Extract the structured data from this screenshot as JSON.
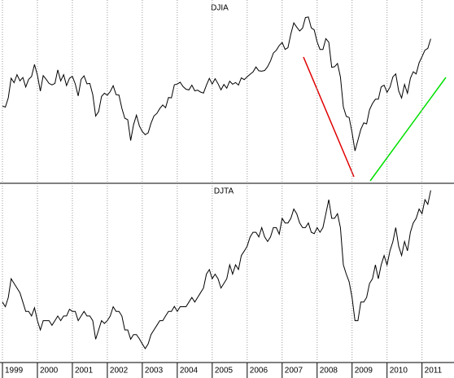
{
  "chart_data": [
    {
      "type": "line",
      "title": "DJIA",
      "color": "#000000",
      "ylim": [
        5400,
        14800
      ],
      "categories": [
        "1999",
        null,
        null,
        null,
        null,
        null,
        null,
        null,
        null,
        null,
        null,
        null,
        "2000",
        null,
        null,
        null,
        null,
        null,
        null,
        null,
        null,
        null,
        null,
        null,
        "2001",
        null,
        null,
        null,
        null,
        null,
        null,
        null,
        null,
        null,
        null,
        null,
        "2002",
        null,
        null,
        null,
        null,
        null,
        null,
        null,
        null,
        null,
        null,
        null,
        "2003",
        null,
        null,
        null,
        null,
        null,
        null,
        null,
        null,
        null,
        null,
        null,
        "2004",
        null,
        null,
        null,
        null,
        null,
        null,
        null,
        null,
        null,
        null,
        null,
        "2005",
        null,
        null,
        null,
        null,
        null,
        null,
        null,
        null,
        null,
        null,
        null,
        "2006",
        null,
        null,
        null,
        null,
        null,
        null,
        null,
        null,
        null,
        null,
        null,
        "2007",
        null,
        null,
        null,
        null,
        null,
        null,
        null,
        null,
        null,
        null,
        null,
        "2008",
        null,
        null,
        null,
        null,
        null,
        null,
        null,
        null,
        null,
        null,
        null,
        "2009",
        null,
        null,
        null,
        null,
        null,
        null,
        null,
        null,
        null,
        null,
        null,
        "2010",
        null,
        null,
        null,
        null,
        null,
        null,
        null,
        null,
        null,
        null,
        null,
        "2011",
        null,
        null,
        null
      ],
      "values": [
        9359,
        9307,
        9786,
        10789,
        10559,
        10971,
        10655,
        10829,
        10337,
        10730,
        10878,
        11497,
        10941,
        10128,
        10922,
        10734,
        10522,
        10448,
        10522,
        11215,
        10651,
        10971,
        10415,
        10787,
        10887,
        10495,
        9879,
        10735,
        10912,
        10502,
        10523,
        9950,
        8848,
        9075,
        9852,
        10021,
        9920,
        10106,
        10404,
        9946,
        9925,
        9243,
        8737,
        8664,
        7592,
        8397,
        8896,
        8342,
        8054,
        7891,
        7992,
        8480,
        8850,
        8985,
        9234,
        9416,
        9275,
        9801,
        9782,
        10454,
        10488,
        10583,
        10358,
        10226,
        10188,
        10435,
        10140,
        10174,
        10080,
        10027,
        10428,
        10783,
        10490,
        10766,
        10504,
        10193,
        10467,
        10275,
        10641,
        10482,
        10569,
        10440,
        10806,
        10718,
        10865,
        10993,
        11109,
        11367,
        11168,
        11150,
        11186,
        11381,
        11679,
        12081,
        12221,
        12463,
        12622,
        12269,
        12354,
        13063,
        13628,
        13409,
        13212,
        13358,
        13896,
        13930,
        13372,
        13265,
        12650,
        12266,
        12263,
        12820,
        12638,
        11350,
        11378,
        11544,
        10851,
        9325,
        8829,
        8776,
        8001,
        7063,
        7609,
        8168,
        8500,
        8447,
        9172,
        9496,
        9712,
        9713,
        10345,
        10428,
        10067,
        10325,
        10857,
        11009,
        10137,
        9774,
        10466,
        10015,
        10788,
        11118,
        11006,
        11578,
        11892,
        12226,
        12320,
        12811
      ]
    },
    {
      "type": "line",
      "title": "DJTA",
      "color": "#000000",
      "ylim": [
        1800,
        5600
      ],
      "categories": [
        "1999",
        null,
        null,
        null,
        null,
        null,
        null,
        null,
        null,
        null,
        null,
        null,
        "2000",
        null,
        null,
        null,
        null,
        null,
        null,
        null,
        null,
        null,
        null,
        null,
        "2001",
        null,
        null,
        null,
        null,
        null,
        null,
        null,
        null,
        null,
        null,
        null,
        "2002",
        null,
        null,
        null,
        null,
        null,
        null,
        null,
        null,
        null,
        null,
        null,
        "2003",
        null,
        null,
        null,
        null,
        null,
        null,
        null,
        null,
        null,
        null,
        null,
        "2004",
        null,
        null,
        null,
        null,
        null,
        null,
        null,
        null,
        null,
        null,
        null,
        "2005",
        null,
        null,
        null,
        null,
        null,
        null,
        null,
        null,
        null,
        null,
        null,
        "2006",
        null,
        null,
        null,
        null,
        null,
        null,
        null,
        null,
        null,
        null,
        null,
        "2007",
        null,
        null,
        null,
        null,
        null,
        null,
        null,
        null,
        null,
        null,
        null,
        "2008",
        null,
        null,
        null,
        null,
        null,
        null,
        null,
        null,
        null,
        null,
        null,
        "2009",
        null,
        null,
        null,
        null,
        null,
        null,
        null,
        null,
        null,
        null,
        null,
        "2010",
        null,
        null,
        null,
        null,
        null,
        null,
        null,
        null,
        null,
        null,
        null,
        "2011",
        null,
        null,
        null
      ],
      "values": [
        3100,
        3000,
        3200,
        3600,
        3500,
        3400,
        3300,
        3100,
        2900,
        2900,
        2800,
        2977,
        2700,
        2500,
        2700,
        2700,
        2700,
        2600,
        2700,
        2800,
        2700,
        2800,
        2800,
        2946,
        2900,
        2900,
        2700,
        2800,
        2900,
        2800,
        2800,
        2700,
        2300,
        2500,
        2700,
        2640,
        2700,
        2800,
        3000,
        2900,
        2900,
        2800,
        2500,
        2500,
        2300,
        2400,
        2400,
        2310,
        2200,
        2100,
        2200,
        2400,
        2500,
        2600,
        2700,
        2700,
        2800,
        2900,
        2900,
        3007,
        2900,
        3000,
        3000,
        3000,
        3100,
        3200,
        3100,
        3200,
        3300,
        3400,
        3700,
        3798,
        3600,
        3700,
        3600,
        3400,
        3500,
        3600,
        3900,
        3700,
        3900,
        3800,
        4100,
        4196,
        4300,
        4500,
        4600,
        4600,
        4500,
        4700,
        4500,
        4400,
        4500,
        4700,
        4700,
        4560,
        4900,
        4800,
        4800,
        4900,
        5100,
        5000,
        4800,
        4700,
        4700,
        4800,
        4600,
        4570,
        4700,
        4600,
        4700,
        5000,
        5300,
        4900,
        4900,
        5000,
        4700,
        3900,
        3700,
        3537,
        3200,
        2700,
        2700,
        3100,
        3100,
        3200,
        3500,
        3600,
        3900,
        3600,
        3900,
        4100,
        3900,
        4200,
        4400,
        4700,
        4300,
        4100,
        4400,
        4200,
        4600,
        4800,
        4900,
        5100,
        5000,
        5300,
        5200,
        5500
      ]
    }
  ]
}
